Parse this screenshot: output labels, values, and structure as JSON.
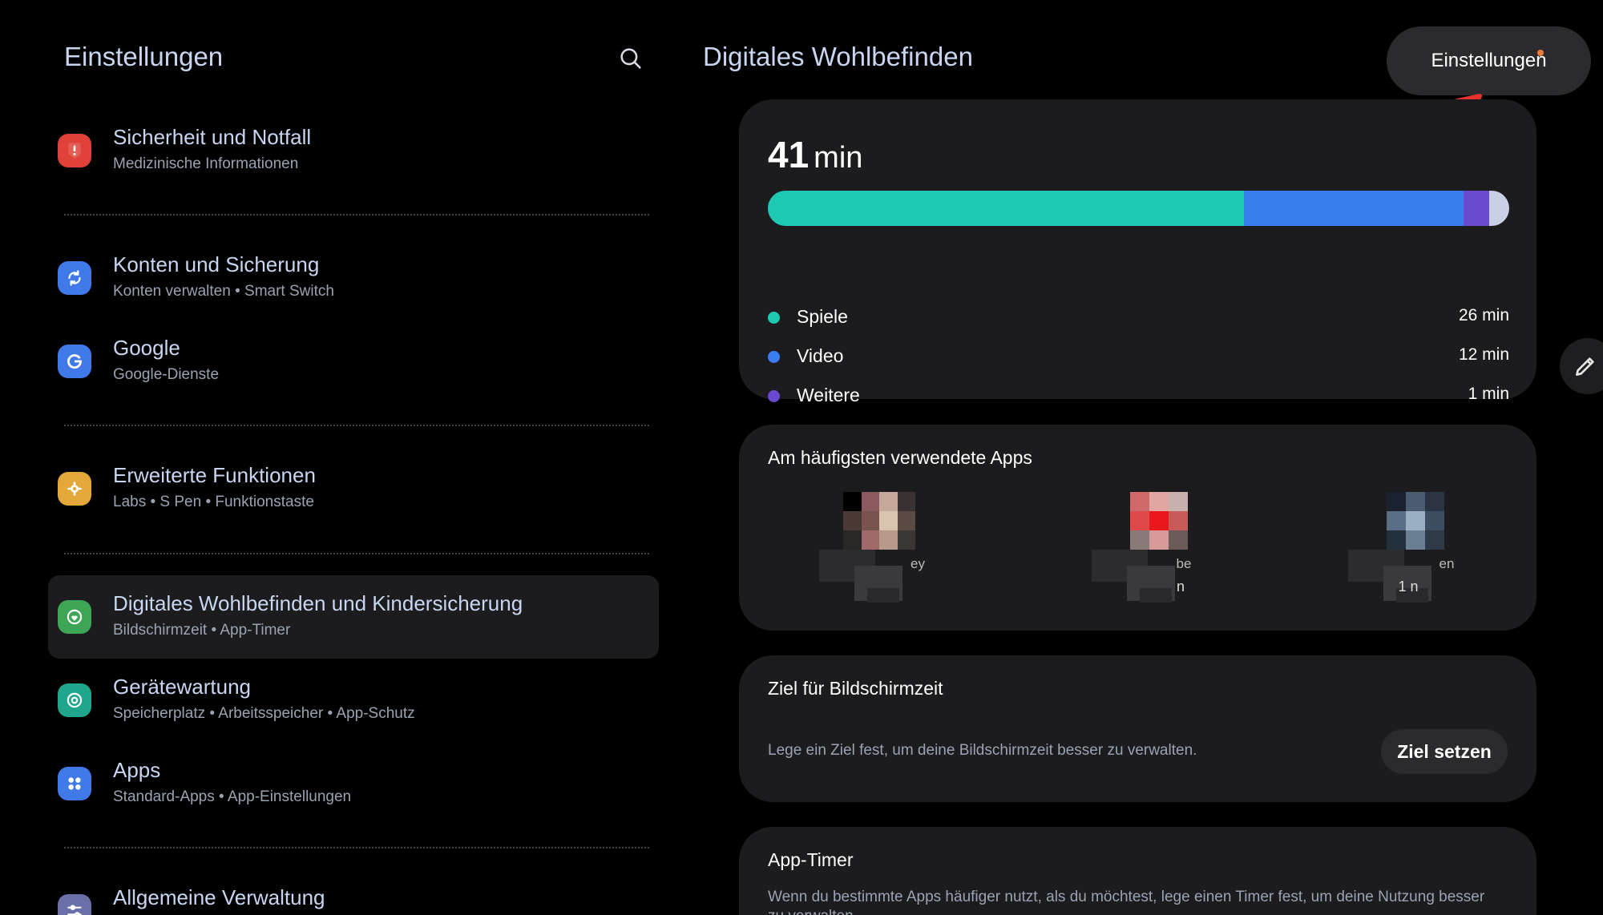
{
  "left": {
    "title": "Einstellungen",
    "search_icon": "search-icon",
    "items": [
      {
        "title": "Sicherheit und Notfall",
        "subtitle": "Medizinische Informationen",
        "icon": "alert-icon",
        "icon_color": "#e0423a"
      },
      {
        "title": "Konten und Sicherung",
        "subtitle": "Konten verwalten  •  Smart Switch",
        "icon": "sync-icon",
        "icon_color": "#3f7ae8"
      },
      {
        "title": "Google",
        "subtitle": "Google-Dienste",
        "icon": "google-icon",
        "icon_color": "#3f7ae8"
      },
      {
        "title": "Erweiterte Funktionen",
        "subtitle": "Labs  •  S Pen  •  Funktionstaste",
        "icon": "puzzle-gear-icon",
        "icon_color": "#e4a73a"
      },
      {
        "title": "Digitales Wohlbefinden und Kindersicherung",
        "subtitle": "Bildschirmzeit  •  App-Timer",
        "icon": "wellbeing-icon",
        "icon_color": "#3ea556"
      },
      {
        "title": "Gerätewartung",
        "subtitle": "Speicherplatz  •  Arbeitsspeicher  •  App-Schutz",
        "icon": "device-care-icon",
        "icon_color": "#1fa68c"
      },
      {
        "title": "Apps",
        "subtitle": "Standard-Apps  •  App-Einstellungen",
        "icon": "apps-grid-icon",
        "icon_color": "#3f7ae8"
      },
      {
        "title": "Allgemeine Verwaltung",
        "subtitle": "",
        "icon": "sliders-icon",
        "icon_color": "#6b6fa8"
      }
    ]
  },
  "right": {
    "title": "Digitales Wohlbefinden",
    "settings_button": "Einstellungen",
    "usage": {
      "total_value": "41",
      "total_unit": "min",
      "categories": [
        {
          "label": "Spiele",
          "value": "26 min",
          "color": "#1ec9b3"
        },
        {
          "label": "Video",
          "value": "12 min",
          "color": "#3a7df0"
        },
        {
          "label": "Weitere",
          "value": "1 min",
          "color": "#6a48d0"
        }
      ],
      "bar_remainder_color": "#c8d0e6"
    },
    "most_used": {
      "heading": "Am häufigsten verwendete Apps",
      "apps": [
        {
          "name": "ey",
          "time": ""
        },
        {
          "name": "be",
          "time": "n"
        },
        {
          "name": "en",
          "time": "1  n"
        }
      ]
    },
    "goal": {
      "heading": "Ziel für Bildschirmzeit",
      "description": "Lege ein Ziel fest, um deine Bildschirmzeit besser zu verwalten.",
      "button": "Ziel setzen"
    },
    "timer": {
      "heading": "App-Timer",
      "description": "Wenn du bestimmte Apps häufiger nutzt, als du möchtest, lege einen Timer fest, um deine Nutzung besser zu verwalten."
    }
  }
}
